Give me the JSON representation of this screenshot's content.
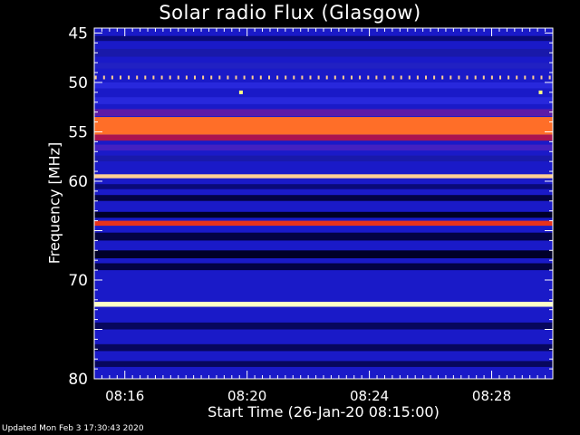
{
  "chart_data": {
    "type": "heatmap",
    "title": "Solar radio Flux (Glasgow)",
    "xlabel": "Start Time (26-Jan-20 08:15:00)",
    "ylabel": "Frequency [MHz]",
    "x_ticks": [
      "08:16",
      "08:20",
      "08:24",
      "08:28"
    ],
    "y_ticks": [
      45,
      50,
      55,
      60,
      65,
      70,
      75,
      80
    ],
    "y_tick_labels": [
      "45",
      "50",
      "55",
      "60",
      "",
      "70",
      "",
      "80"
    ],
    "x_range_minutes": [
      0,
      15
    ],
    "x_tick_minutes": [
      1,
      5,
      9,
      13
    ],
    "y_range": [
      44.5,
      80
    ],
    "y_scale": "linear",
    "background_color": "#1a1ac8",
    "bands": [
      {
        "f_start": 45.3,
        "f_end": 45.8,
        "intensity": 0.15
      },
      {
        "f_start": 46.6,
        "f_end": 47.4,
        "intensity": 0.25
      },
      {
        "f_start": 48.0,
        "f_end": 48.6,
        "intensity": 0.3
      },
      {
        "f_start": 50.0,
        "f_end": 50.6,
        "intensity": 0.35
      },
      {
        "f_start": 51.5,
        "f_end": 52.2,
        "intensity": 0.35
      },
      {
        "f_start": 52.7,
        "f_end": 53.4,
        "intensity": 0.45
      },
      {
        "f_start": 53.5,
        "f_end": 55.3,
        "intensity": 0.85
      },
      {
        "f_start": 55.3,
        "f_end": 55.9,
        "intensity": 0.6
      },
      {
        "f_start": 56.3,
        "f_end": 56.9,
        "intensity": 0.4
      },
      {
        "f_start": 57.4,
        "f_end": 58.0,
        "intensity": 0.25
      },
      {
        "f_start": 59.3,
        "f_end": 59.7,
        "intensity": 0.95
      },
      {
        "f_start": 60.3,
        "f_end": 60.8,
        "intensity": 0.15
      },
      {
        "f_start": 61.4,
        "f_end": 62.0,
        "intensity": 0.05
      },
      {
        "f_start": 63.1,
        "f_end": 63.7,
        "intensity": 0.0
      },
      {
        "f_start": 64.0,
        "f_end": 64.5,
        "intensity": 0.75
      },
      {
        "f_start": 65.2,
        "f_end": 66.0,
        "intensity": 0.05
      },
      {
        "f_start": 67.0,
        "f_end": 67.8,
        "intensity": 0.0
      },
      {
        "f_start": 68.3,
        "f_end": 69.0,
        "intensity": 0.05
      },
      {
        "f_start": 72.2,
        "f_end": 72.7,
        "intensity": 1.0
      },
      {
        "f_start": 74.3,
        "f_end": 75.0,
        "intensity": 0.1
      },
      {
        "f_start": 76.5,
        "f_end": 77.2,
        "intensity": 0.1
      },
      {
        "f_start": 78.2,
        "f_end": 78.8,
        "intensity": 0.1
      }
    ],
    "pulsed_line": {
      "frequency": 49.5,
      "spacing_minutes": 0.27,
      "intensity": 0.95
    },
    "spikes": [
      {
        "x_minutes": 4.8,
        "frequency": 51.0
      },
      {
        "x_minutes": 14.6,
        "frequency": 51.0
      }
    ]
  },
  "footer": {
    "updated": "Updated Mon Feb  3 17:30:43 2020"
  }
}
